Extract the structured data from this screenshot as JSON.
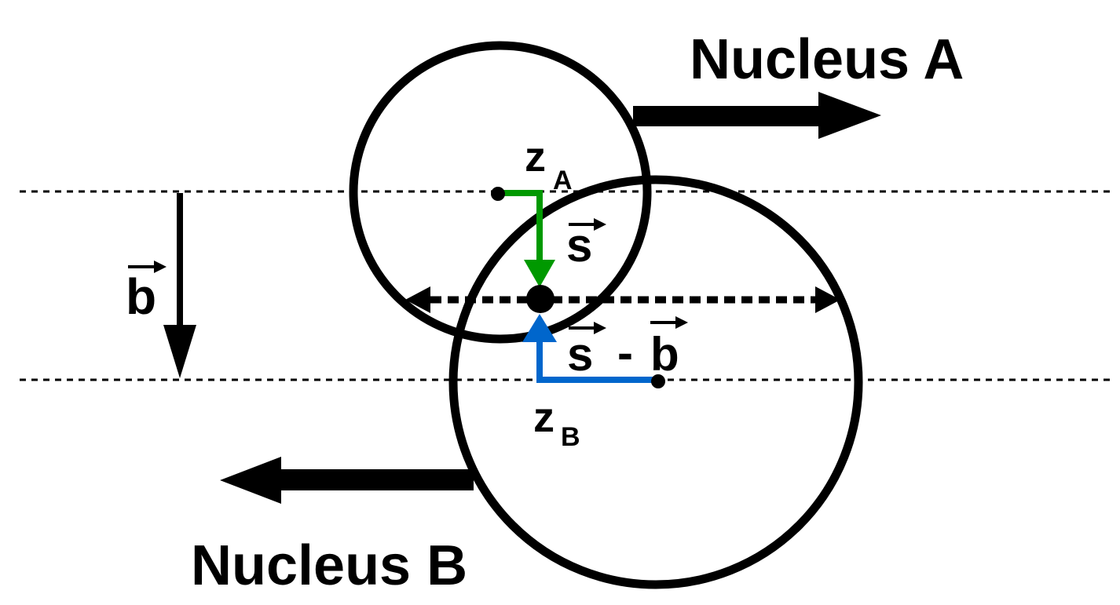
{
  "labels": {
    "nucleus_a": "Nucleus A",
    "nucleus_b": "Nucleus B",
    "z_a": "z",
    "z_a_sub": "A",
    "z_b": "z",
    "z_b_sub": "B",
    "vec_b": "b",
    "vec_s": "s",
    "vec_s_minus_b_s": "s",
    "vec_s_minus_b_op": "-",
    "vec_s_minus_b_b": "b"
  },
  "colors": {
    "outline": "#000000",
    "vector_s": "#009900",
    "vector_s_minus_b": "#0066cc"
  }
}
